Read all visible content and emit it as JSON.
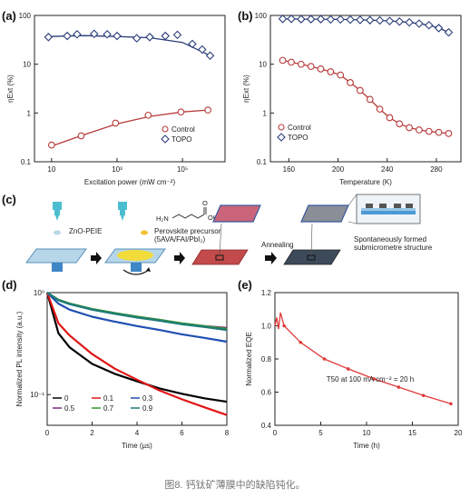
{
  "caption": "图8. 钙钛矿薄膜中的缺陷钝化。",
  "colors": {
    "control": "#b83a3a",
    "topo": "#2c3e7a",
    "edge": "#333"
  },
  "chart_data": [
    {
      "id": "a",
      "panel_label": "(a)",
      "type": "scatter",
      "xlabel": "Excitation power (mW cm⁻²)",
      "ylabel": "ηExt (%)",
      "xscale": "log",
      "yscale": "log",
      "xlim": [
        3,
        2000000
      ],
      "ylim": [
        0.1,
        100
      ],
      "xticks": [
        "10",
        "10³",
        "10⁵"
      ],
      "yticks": [
        "0.1",
        "1",
        "10",
        "100"
      ],
      "legend": {
        "position": "bottom-right",
        "entries": [
          "Control",
          "TOPO"
        ]
      },
      "series": [
        {
          "name": "Control",
          "marker": "circle",
          "x": [
            10,
            80,
            900,
            9000,
            90000,
            600000
          ],
          "y": [
            0.22,
            0.34,
            0.62,
            0.9,
            1.05,
            1.15
          ],
          "fit": [
            [
              10,
              0.21
            ],
            [
              100,
              0.36
            ],
            [
              1000,
              0.6
            ],
            [
              10000,
              0.85
            ],
            [
              100000,
              1.05
            ],
            [
              600000,
              1.15
            ]
          ]
        },
        {
          "name": "TOPO",
          "marker": "diamond",
          "x": [
            8,
            30,
            60,
            200,
            500,
            1000,
            4000,
            10000,
            30000,
            70000,
            200000,
            400000,
            700000
          ],
          "y": [
            36,
            38,
            41,
            42,
            41,
            38,
            34,
            36,
            38,
            40,
            26,
            20,
            15
          ],
          "fit": [
            [
              8,
              37
            ],
            [
              100,
              38.5
            ],
            [
              1000,
              37
            ],
            [
              10000,
              35
            ],
            [
              100000,
              28
            ],
            [
              700000,
              15
            ]
          ]
        }
      ]
    },
    {
      "id": "b",
      "panel_label": "(b)",
      "type": "scatter",
      "xlabel": "Temperature (K)",
      "ylabel": "ηExt (%)",
      "yscale": "log",
      "xlim": [
        145,
        300
      ],
      "ylim": [
        0.1,
        100
      ],
      "xticks": [
        160,
        200,
        240,
        280
      ],
      "yticks": [
        "0.1",
        "1",
        "10",
        "100"
      ],
      "legend": {
        "position": "bottom-left",
        "entries": [
          "Control",
          "TOPO"
        ]
      },
      "series": [
        {
          "name": "Control",
          "marker": "circle",
          "x": [
            155,
            162,
            170,
            178,
            186,
            194,
            202,
            210,
            218,
            226,
            234,
            242,
            250,
            258,
            266,
            274,
            282,
            290
          ],
          "y": [
            12,
            11,
            10,
            9,
            8,
            7,
            6,
            4.2,
            2.9,
            1.9,
            1.2,
            0.8,
            0.6,
            0.5,
            0.45,
            0.42,
            0.4,
            0.38
          ]
        },
        {
          "name": "TOPO",
          "marker": "diamond",
          "x": [
            155,
            162,
            170,
            178,
            186,
            194,
            202,
            210,
            218,
            226,
            234,
            242,
            250,
            258,
            266,
            274,
            282,
            290
          ],
          "y": [
            85,
            85,
            84,
            84,
            84,
            83,
            83,
            82,
            81,
            80,
            79,
            77,
            75,
            72,
            68,
            63,
            55,
            45
          ]
        }
      ]
    },
    {
      "id": "d",
      "panel_label": "(d)",
      "type": "line",
      "xlabel": "Time (µs)",
      "ylabel": "Normalized PL intensity (a.u.)",
      "yscale": "log",
      "xlim": [
        0,
        8
      ],
      "ylim": [
        0.05,
        1
      ],
      "xticks": [
        0,
        2,
        4,
        6,
        8
      ],
      "yticks": [
        "10⁻¹",
        "10⁰"
      ],
      "legend": {
        "position": "bottom-left",
        "entries": [
          "0",
          "0.1",
          "0.3",
          "0.5",
          "0.7",
          "0.9"
        ]
      },
      "series": [
        {
          "name": "0",
          "color": "#000000",
          "x": [
            0,
            0.5,
            1,
            2,
            3,
            4,
            5,
            6,
            7,
            8
          ],
          "y": [
            1,
            0.4,
            0.29,
            0.2,
            0.16,
            0.135,
            0.115,
            0.102,
            0.092,
            0.085
          ]
        },
        {
          "name": "0.1",
          "color": "#e01515",
          "x": [
            0,
            0.5,
            1,
            2,
            3,
            4,
            5,
            6,
            7,
            8
          ],
          "y": [
            1,
            0.5,
            0.38,
            0.25,
            0.18,
            0.14,
            0.11,
            0.09,
            0.075,
            0.063
          ]
        },
        {
          "name": "0.3",
          "color": "#1f4fb0",
          "x": [
            0,
            0.5,
            1,
            2,
            3,
            4,
            5,
            6,
            7,
            8
          ],
          "y": [
            1,
            0.78,
            0.68,
            0.58,
            0.52,
            0.47,
            0.43,
            0.39,
            0.36,
            0.33
          ]
        },
        {
          "name": "0.5",
          "color": "#7a2a7a",
          "x": [
            0,
            0.5,
            1,
            2,
            3,
            4,
            5,
            6,
            7,
            8
          ],
          "y": [
            1,
            0.85,
            0.78,
            0.69,
            0.63,
            0.58,
            0.54,
            0.5,
            0.47,
            0.45
          ]
        },
        {
          "name": "0.7",
          "color": "#2f9a2f",
          "x": [
            0,
            0.5,
            1,
            2,
            3,
            4,
            5,
            6,
            7,
            8
          ],
          "y": [
            1,
            0.85,
            0.78,
            0.69,
            0.63,
            0.58,
            0.54,
            0.5,
            0.47,
            0.44
          ]
        },
        {
          "name": "0.9",
          "color": "#1d7a7a",
          "x": [
            0,
            0.5,
            1,
            2,
            3,
            4,
            5,
            6,
            7,
            8
          ],
          "y": [
            1,
            0.84,
            0.77,
            0.68,
            0.62,
            0.57,
            0.53,
            0.49,
            0.46,
            0.43
          ]
        }
      ]
    },
    {
      "id": "e",
      "panel_label": "(e)",
      "type": "line",
      "xlabel": "Time (h)",
      "ylabel": "Normalized EQE",
      "xlim": [
        0,
        20
      ],
      "ylim": [
        0.4,
        1.2
      ],
      "xticks": [
        0,
        5,
        10,
        15,
        20
      ],
      "yticks": [
        "0.4",
        "0.6",
        "0.8",
        "1.0",
        "1.2"
      ],
      "annotation": "T50 at 100 mA cm⁻² = 20 h",
      "series": [
        {
          "name": "EQE",
          "color": "#e03a3a",
          "x": [
            0,
            0.2,
            0.4,
            0.6,
            1,
            2.8,
            5.4,
            8,
            10.8,
            13.5,
            16.2,
            19.2
          ],
          "y": [
            1.0,
            1.05,
            0.98,
            1.08,
            1.0,
            0.9,
            0.8,
            0.74,
            0.68,
            0.63,
            0.58,
            0.53
          ]
        }
      ]
    }
  ],
  "schematic": {
    "panel_label": "(c)",
    "labels": {
      "zno": "ZnO-PEIE",
      "precursor": "Perovskite precursor",
      "precursor_formula": "(5AVA/FAI/PbI₂)",
      "h2n": "H₂N",
      "oh": "OH",
      "o": "O",
      "annealing": "Annealing",
      "structure1": "Spontaneously formed",
      "structure2": "submicrometre structure"
    }
  }
}
